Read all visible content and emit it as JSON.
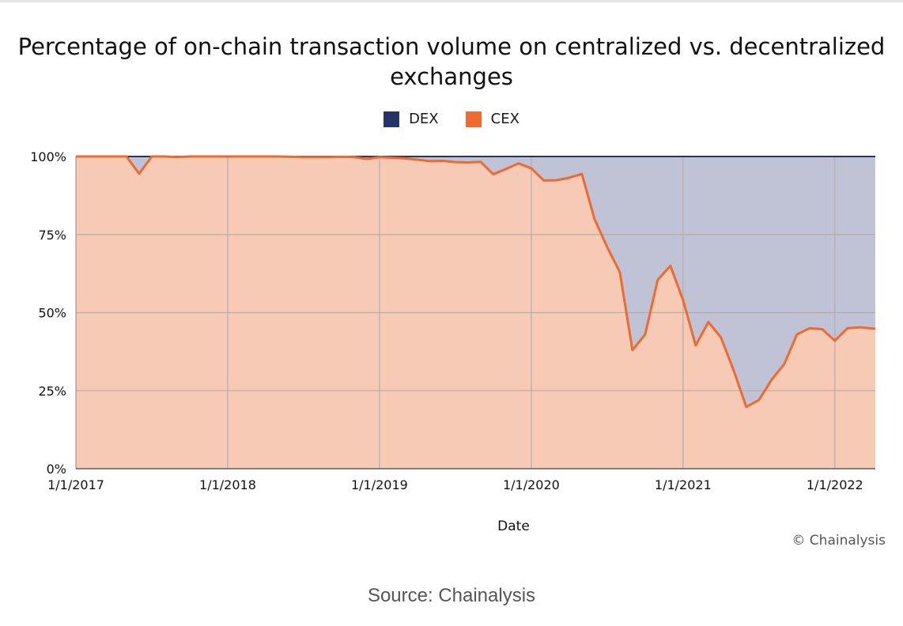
{
  "chart_data": {
    "type": "area",
    "title": "Percentage of on-chain transaction volume on centralized vs. decentralized exchanges",
    "xlabel": "Date",
    "ylabel": "",
    "ylim": [
      0,
      100
    ],
    "grid": true,
    "legend_position": "top-center",
    "y_ticks": [
      "0%",
      "25%",
      "50%",
      "75%",
      "100%"
    ],
    "x_ticks": [
      {
        "label": "1/1/2017",
        "month": 0
      },
      {
        "label": "1/1/2018",
        "month": 12
      },
      {
        "label": "1/1/2019",
        "month": 24
      },
      {
        "label": "1/1/2020",
        "month": 36
      },
      {
        "label": "1/1/2021",
        "month": 48
      },
      {
        "label": "1/1/2022",
        "month": 60
      }
    ],
    "x_range_months": [
      0,
      63.2
    ],
    "series": [
      {
        "name": "DEX",
        "color": "#243466",
        "fill": "#bfc3d5"
      },
      {
        "name": "CEX",
        "color": "#ee6a30",
        "fill": "#f6cab5"
      }
    ],
    "cex_points": [
      [
        0,
        100
      ],
      [
        1,
        100
      ],
      [
        2,
        100
      ],
      [
        3,
        100
      ],
      [
        4,
        100
      ],
      [
        5,
        94.5
      ],
      [
        6,
        100
      ],
      [
        7,
        100
      ],
      [
        8,
        99.8
      ],
      [
        9,
        100
      ],
      [
        10,
        100
      ],
      [
        11,
        100
      ],
      [
        12,
        100
      ],
      [
        13,
        100
      ],
      [
        14,
        100
      ],
      [
        15,
        100
      ],
      [
        16,
        100
      ],
      [
        17,
        99.9
      ],
      [
        18,
        99.8
      ],
      [
        19,
        99.8
      ],
      [
        20,
        99.8
      ],
      [
        21,
        99.9
      ],
      [
        22,
        99.8
      ],
      [
        23,
        99.2
      ],
      [
        24,
        99.8
      ],
      [
        25,
        99.6
      ],
      [
        26,
        99.4
      ],
      [
        27,
        99
      ],
      [
        28,
        98.5
      ],
      [
        29,
        98.6
      ],
      [
        30,
        98.2
      ],
      [
        31,
        98.1
      ],
      [
        32,
        98.3
      ],
      [
        33,
        94.3
      ],
      [
        34,
        96
      ],
      [
        35,
        97.8
      ],
      [
        36,
        96.2
      ],
      [
        37,
        92.3
      ],
      [
        38,
        92.4
      ],
      [
        39,
        93.2
      ],
      [
        40,
        94.4
      ],
      [
        41,
        80
      ],
      [
        42,
        71
      ],
      [
        43,
        63
      ],
      [
        44,
        38
      ],
      [
        45,
        43
      ],
      [
        46,
        60.5
      ],
      [
        47,
        65
      ],
      [
        48,
        54
      ],
      [
        49,
        39.5
      ],
      [
        50,
        47
      ],
      [
        51,
        42
      ],
      [
        52,
        31.5
      ],
      [
        53,
        19.8
      ],
      [
        54,
        22
      ],
      [
        55,
        28.5
      ],
      [
        56,
        33.5
      ],
      [
        57,
        43
      ],
      [
        58,
        45
      ],
      [
        59,
        44.7
      ],
      [
        60,
        41
      ],
      [
        61,
        45
      ],
      [
        62,
        45.3
      ],
      [
        63.2,
        44.8
      ]
    ]
  },
  "legend": {
    "dex": "DEX",
    "cex": "CEX"
  },
  "credit": "© Chainalysis",
  "source": "Source: Chainalysis"
}
